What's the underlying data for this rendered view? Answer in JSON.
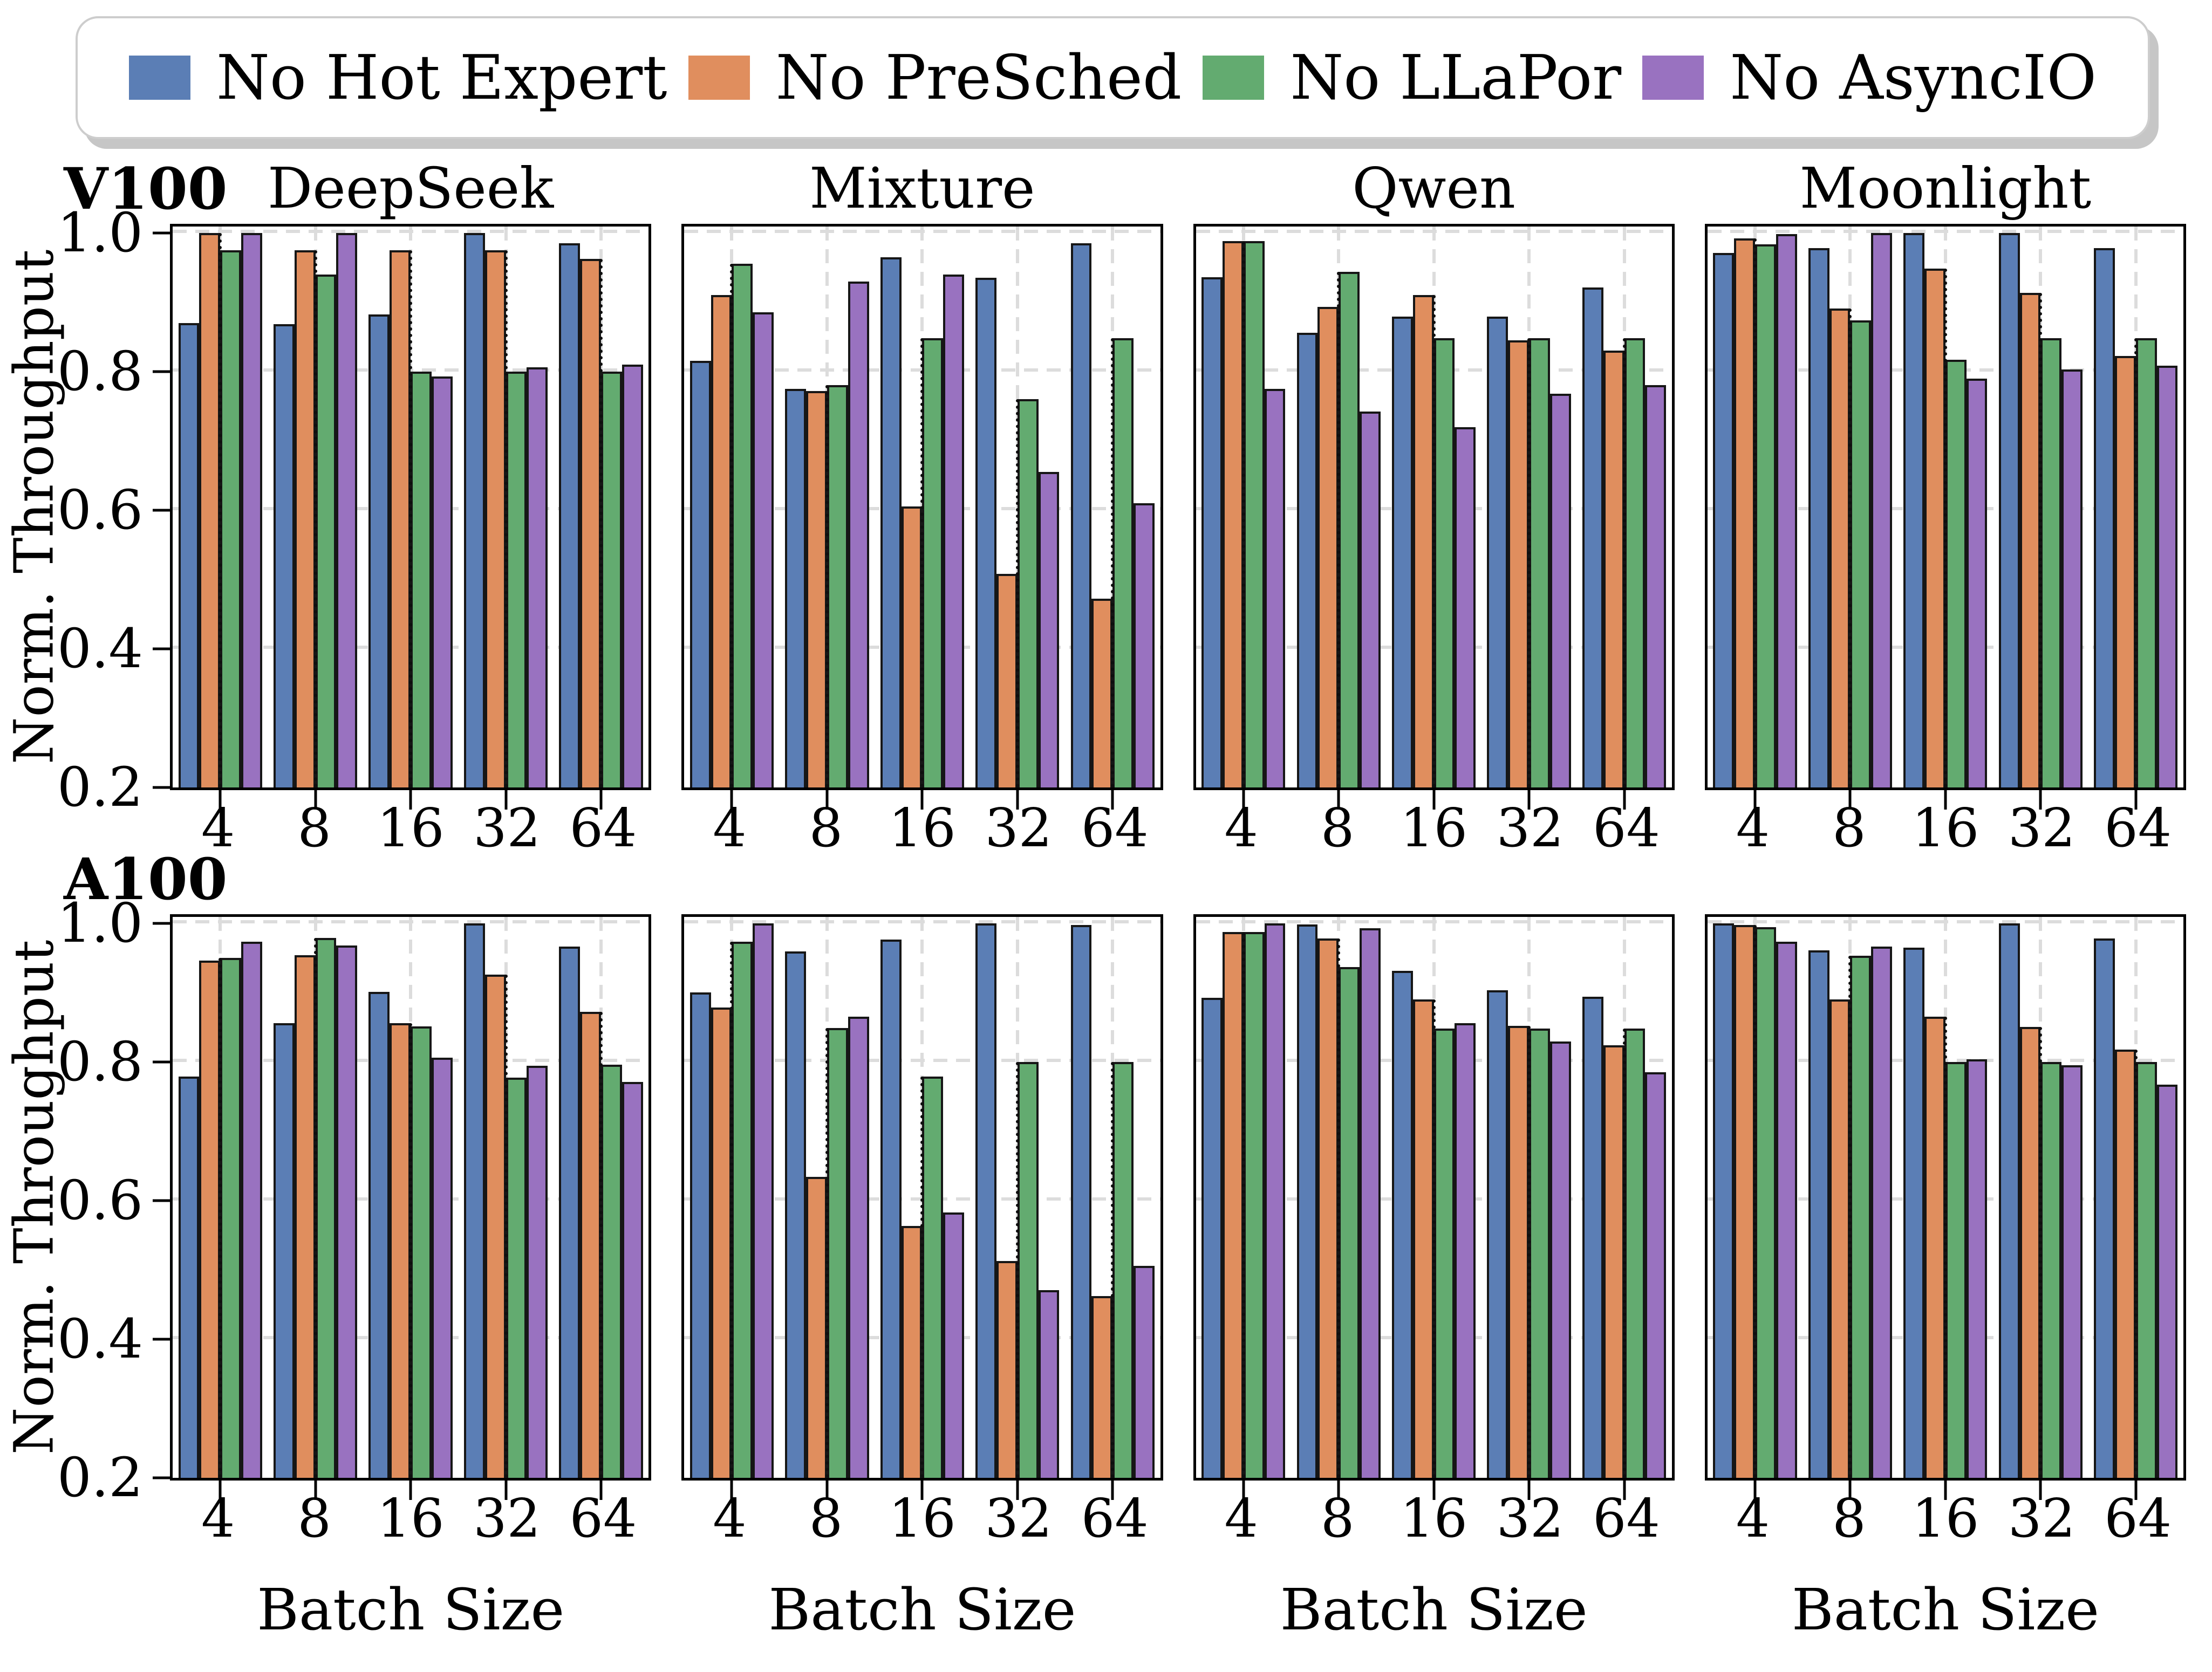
{
  "legend": {
    "items": [
      {
        "label": "No Hot Expert",
        "color": "#5B7EB5"
      },
      {
        "label": "No PreSched",
        "color": "#E08E5E"
      },
      {
        "label": "No LLaPor",
        "color": "#63AB70"
      },
      {
        "label": "No AsyncIO",
        "color": "#9972C0"
      }
    ]
  },
  "rows": [
    {
      "label": "V100"
    },
    {
      "label": "A100"
    }
  ],
  "axes": {
    "ylabel": "Norm. Throughput",
    "xlabel": "Batch Size",
    "yticks": [
      "1.0",
      "0.8",
      "0.6",
      "0.4",
      "0.2"
    ],
    "ylim": [
      0.2,
      1.0
    ],
    "grid": "dashed"
  },
  "colors": {
    "bar_edge": "#161616",
    "gridline": "#DCDCDC",
    "spine": "#000000",
    "legend_border": "#CDCDCD"
  },
  "chart_data": [
    {
      "row": "V100",
      "title": "DeepSeek",
      "type": "bar",
      "categories": [
        "4",
        "8",
        "16",
        "32",
        "64"
      ],
      "series": [
        {
          "name": "No Hot Expert",
          "values": [
            0.87,
            0.868,
            0.882,
            1.0,
            0.985
          ]
        },
        {
          "name": "No PreSched",
          "values": [
            1.0,
            0.975,
            0.975,
            0.975,
            0.962
          ]
        },
        {
          "name": "No LLaPor",
          "values": [
            0.975,
            0.94,
            0.8,
            0.8,
            0.8
          ]
        },
        {
          "name": "No AsyncIO",
          "values": [
            1.0,
            1.0,
            0.793,
            0.806,
            0.81
          ]
        }
      ],
      "ylim": [
        0.2,
        1.0
      ]
    },
    {
      "row": "V100",
      "title": "Mixture",
      "type": "bar",
      "categories": [
        "4",
        "8",
        "16",
        "32",
        "64"
      ],
      "series": [
        {
          "name": "No Hot Expert",
          "values": [
            0.815,
            0.775,
            0.965,
            0.935,
            0.985
          ]
        },
        {
          "name": "No PreSched",
          "values": [
            0.91,
            0.772,
            0.605,
            0.508,
            0.472
          ]
        },
        {
          "name": "No LLaPor",
          "values": [
            0.955,
            0.78,
            0.848,
            0.76,
            0.848
          ]
        },
        {
          "name": "No AsyncIO",
          "values": [
            0.885,
            0.93,
            0.94,
            0.655,
            0.61
          ]
        }
      ],
      "ylim": [
        0.2,
        1.0
      ]
    },
    {
      "row": "V100",
      "title": "Qwen",
      "type": "bar",
      "categories": [
        "4",
        "8",
        "16",
        "32",
        "64"
      ],
      "series": [
        {
          "name": "No Hot Expert",
          "values": [
            0.936,
            0.856,
            0.879,
            0.879,
            0.921
          ]
        },
        {
          "name": "No PreSched",
          "values": [
            0.988,
            0.893,
            0.91,
            0.845,
            0.83
          ]
        },
        {
          "name": "No LLaPor",
          "values": [
            0.988,
            0.944,
            0.848,
            0.848,
            0.848
          ]
        },
        {
          "name": "No AsyncIO",
          "values": [
            0.775,
            0.742,
            0.72,
            0.768,
            0.78
          ]
        }
      ],
      "ylim": [
        0.2,
        1.0
      ]
    },
    {
      "row": "V100",
      "title": "Moonlight",
      "type": "bar",
      "categories": [
        "4",
        "8",
        "16",
        "32",
        "64"
      ],
      "series": [
        {
          "name": "No Hot Expert",
          "values": [
            0.971,
            0.978,
            1.0,
            1.0,
            0.978
          ]
        },
        {
          "name": "No PreSched",
          "values": [
            0.992,
            0.891,
            0.948,
            0.913,
            0.822
          ]
        },
        {
          "name": "No LLaPor",
          "values": [
            0.983,
            0.874,
            0.817,
            0.848,
            0.848
          ]
        },
        {
          "name": "No AsyncIO",
          "values": [
            0.998,
            1.0,
            0.79,
            0.803,
            0.808
          ]
        }
      ],
      "ylim": [
        0.2,
        1.0
      ]
    },
    {
      "row": "A100",
      "title": "DeepSeek",
      "type": "bar",
      "categories": [
        "4",
        "8",
        "16",
        "32",
        "64"
      ],
      "series": [
        {
          "name": "No Hot Expert",
          "values": [
            0.779,
            0.856,
            0.901,
            1.0,
            0.966
          ]
        },
        {
          "name": "No PreSched",
          "values": [
            0.946,
            0.954,
            0.856,
            0.926,
            0.872
          ]
        },
        {
          "name": "No LLaPor",
          "values": [
            0.95,
            0.979,
            0.851,
            0.777,
            0.796
          ]
        },
        {
          "name": "No AsyncIO",
          "values": [
            0.973,
            0.968,
            0.806,
            0.794,
            0.771
          ]
        }
      ],
      "ylim": [
        0.2,
        1.0
      ]
    },
    {
      "row": "A100",
      "title": "Mixture",
      "type": "bar",
      "categories": [
        "4",
        "8",
        "16",
        "32",
        "64"
      ],
      "series": [
        {
          "name": "No Hot Expert",
          "values": [
            0.9,
            0.959,
            0.976,
            1.0,
            0.997
          ]
        },
        {
          "name": "No PreSched",
          "values": [
            0.878,
            0.634,
            0.563,
            0.513,
            0.462
          ]
        },
        {
          "name": "No LLaPor",
          "values": [
            0.973,
            0.849,
            0.779,
            0.8,
            0.8
          ]
        },
        {
          "name": "No AsyncIO",
          "values": [
            1.0,
            0.865,
            0.583,
            0.471,
            0.506
          ]
        }
      ],
      "ylim": [
        0.2,
        1.0
      ]
    },
    {
      "row": "A100",
      "title": "Qwen",
      "type": "bar",
      "categories": [
        "4",
        "8",
        "16",
        "32",
        "64"
      ],
      "series": [
        {
          "name": "No Hot Expert",
          "values": [
            0.892,
            0.998,
            0.931,
            0.903,
            0.894
          ]
        },
        {
          "name": "No PreSched",
          "values": [
            0.987,
            0.978,
            0.89,
            0.852,
            0.824
          ]
        },
        {
          "name": "No LLaPor",
          "values": [
            0.987,
            0.937,
            0.848,
            0.848,
            0.848
          ]
        },
        {
          "name": "No AsyncIO",
          "values": [
            1.0,
            0.993,
            0.856,
            0.829,
            0.785
          ]
        }
      ],
      "ylim": [
        0.2,
        1.0
      ]
    },
    {
      "row": "A100",
      "title": "Moonlight",
      "type": "bar",
      "categories": [
        "4",
        "8",
        "16",
        "32",
        "64"
      ],
      "series": [
        {
          "name": "No Hot Expert",
          "values": [
            1.0,
            0.961,
            0.965,
            1.0,
            0.978
          ]
        },
        {
          "name": "No PreSched",
          "values": [
            0.997,
            0.89,
            0.865,
            0.85,
            0.818
          ]
        },
        {
          "name": "No LLaPor",
          "values": [
            0.994,
            0.953,
            0.8,
            0.8,
            0.8
          ]
        },
        {
          "name": "No AsyncIO",
          "values": [
            0.973,
            0.966,
            0.804,
            0.795,
            0.767
          ]
        }
      ],
      "ylim": [
        0.2,
        1.0
      ]
    }
  ]
}
